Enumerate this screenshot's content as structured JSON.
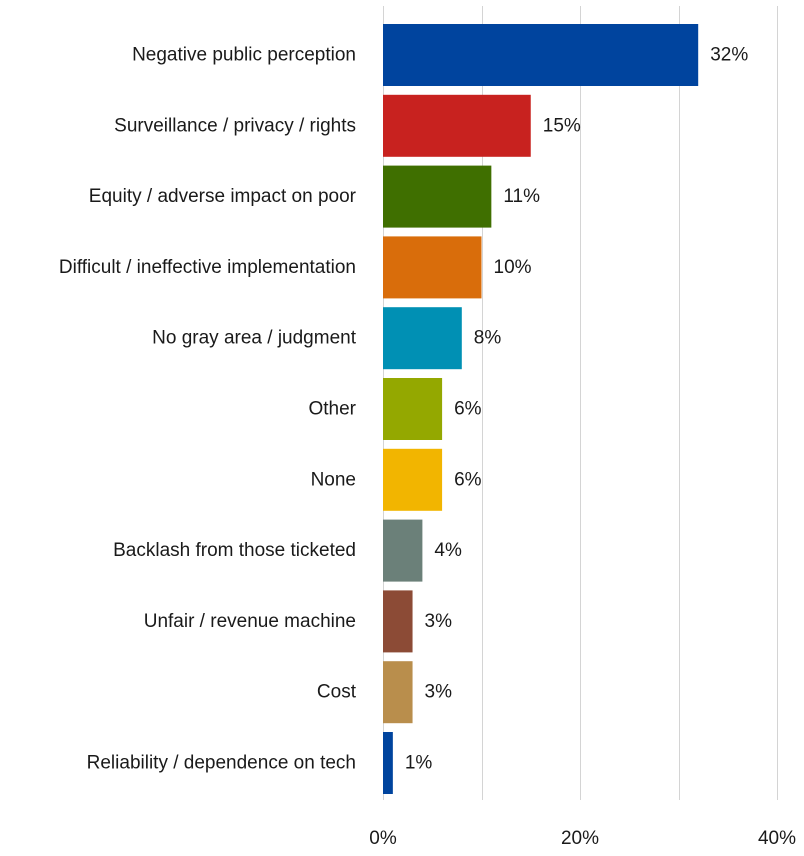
{
  "chart_data": {
    "type": "bar",
    "orientation": "horizontal",
    "title": "",
    "xlabel": "",
    "ylabel": "",
    "categories": [
      "Negative public perception",
      "Surveillance / privacy / rights",
      "Equity / adverse impact on poor",
      "Difficult / ineffective implementation",
      "No gray area / judgment",
      "Other",
      "None",
      "Backlash from those ticketed",
      "Unfair / revenue machine",
      "Cost",
      "Reliability / dependence on tech"
    ],
    "values": [
      32,
      15,
      11,
      10,
      8,
      6,
      6,
      4,
      3,
      3,
      1
    ],
    "value_labels": [
      "32%",
      "15%",
      "11%",
      "10%",
      "8%",
      "6%",
      "6%",
      "4%",
      "3%",
      "3%",
      "1%"
    ],
    "colors": [
      "#00449e",
      "#c8221f",
      "#3f6f00",
      "#d96d0b",
      "#0090b4",
      "#94a800",
      "#f2b500",
      "#6b8079",
      "#8c4b36",
      "#b98e4c",
      "#00449e"
    ],
    "xlim": [
      0,
      40
    ],
    "xticks": [
      0,
      20,
      40
    ],
    "xtick_labels": [
      "0%",
      "20%",
      "40%"
    ],
    "grid": true,
    "legend": "none"
  }
}
